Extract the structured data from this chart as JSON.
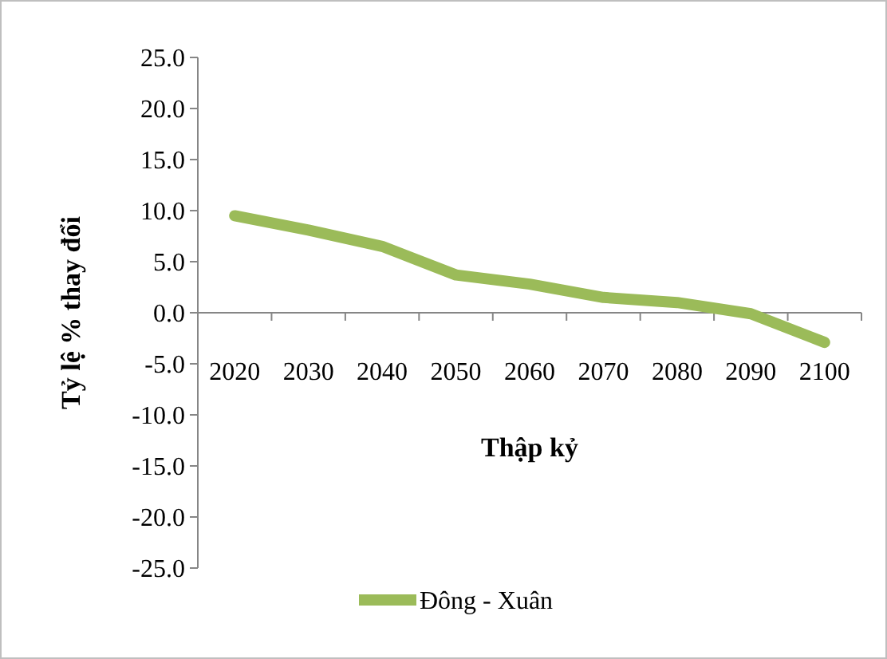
{
  "chart_data": {
    "type": "line",
    "xlabel": "Thập kỷ",
    "ylabel": "Tỷ lệ % thay đổi",
    "categories": [
      "2020",
      "2030",
      "2040",
      "2050",
      "2060",
      "2070",
      "2080",
      "2090",
      "2100"
    ],
    "series": [
      {
        "name": "Đông - Xuân",
        "color": "#9bbb59",
        "values": [
          9.5,
          8.1,
          6.5,
          3.7,
          2.8,
          1.5,
          1.0,
          -0.1,
          -2.9
        ]
      }
    ],
    "ylim": [
      -25,
      25
    ],
    "yticks": [
      {
        "value": 25,
        "label": "25.0"
      },
      {
        "value": 20,
        "label": "20.0"
      },
      {
        "value": 15,
        "label": "15.0"
      },
      {
        "value": 10,
        "label": "10.0"
      },
      {
        "value": 5,
        "label": "5.0"
      },
      {
        "value": 0,
        "label": "0.0"
      },
      {
        "value": -5,
        "label": "-5.0"
      },
      {
        "value": -10,
        "label": "-10.0"
      },
      {
        "value": -15,
        "label": "-15.0"
      },
      {
        "value": -20,
        "label": "-20.0"
      },
      {
        "value": -25,
        "label": "-25.0"
      }
    ],
    "legend": "bottom",
    "grid": false,
    "marker": "none",
    "line_style": "solid"
  }
}
